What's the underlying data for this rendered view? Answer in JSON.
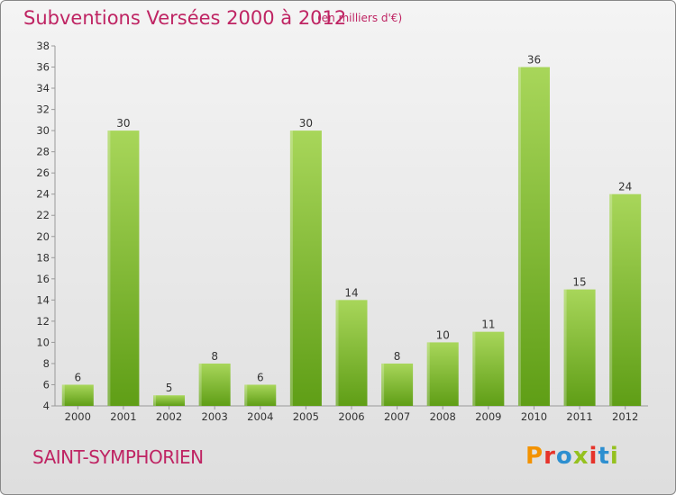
{
  "title": "Subventions Versées 2000 à 2012",
  "subtitle": "(en milliers d'€)",
  "commune": "SAINT-SYMPHORIEN",
  "logo": {
    "letters": [
      "P",
      "r",
      "o",
      "x",
      "i",
      "t",
      "i"
    ],
    "colors": [
      "#f39200",
      "#e6332a",
      "#2d8fd0",
      "#95c11f",
      "#e6332a",
      "#2d8fd0",
      "#95c11f"
    ]
  },
  "colors": {
    "bar_light": "#a8d65a",
    "bar_dark": "#5f9e16",
    "title": "#bf2463"
  },
  "chart_data": {
    "type": "bar",
    "title": "Subventions Versées 2000 à 2012",
    "subtitle": "(en milliers d'€)",
    "xlabel": "",
    "ylabel": "",
    "categories": [
      "2000",
      "2001",
      "2002",
      "2003",
      "2004",
      "2005",
      "2006",
      "2007",
      "2008",
      "2009",
      "2010",
      "2011",
      "2012"
    ],
    "values": [
      6,
      30,
      5,
      8,
      6,
      30,
      14,
      8,
      10,
      11,
      36,
      15,
      24
    ],
    "ylim": [
      4,
      38
    ],
    "yticks": [
      4,
      6,
      8,
      10,
      12,
      14,
      16,
      18,
      20,
      22,
      24,
      26,
      28,
      30,
      32,
      34,
      36,
      38
    ],
    "grid": false,
    "legend": "none"
  }
}
